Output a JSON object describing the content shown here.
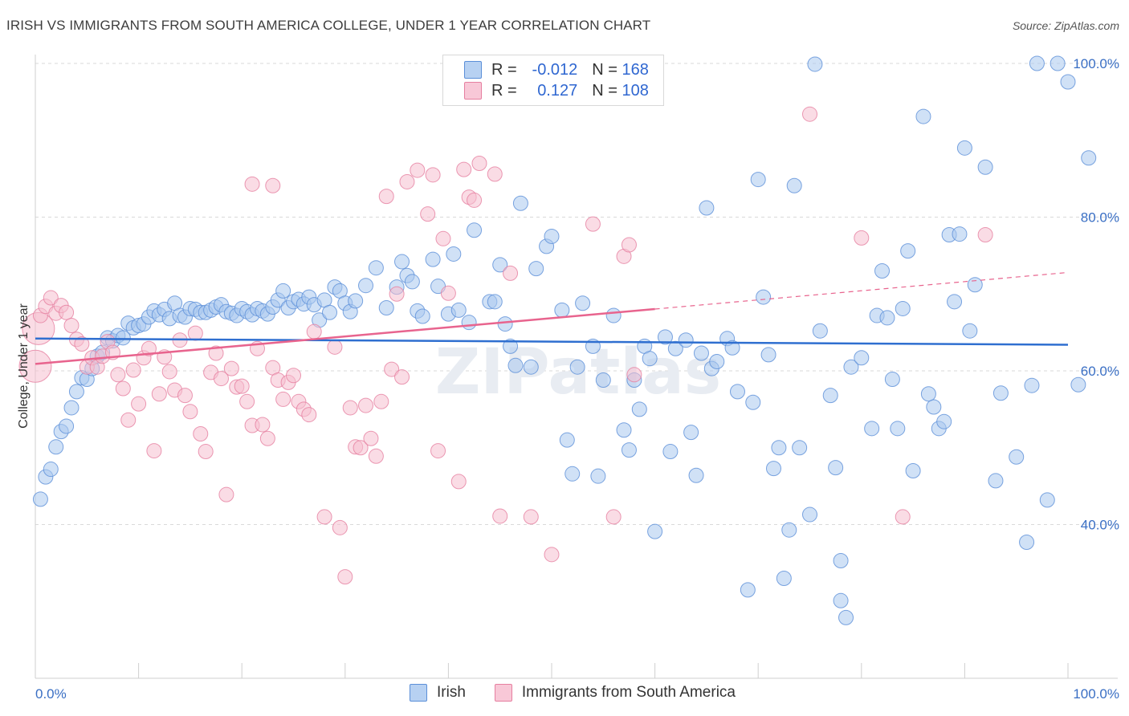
{
  "title": "IRISH VS IMMIGRANTS FROM SOUTH AMERICA COLLEGE, UNDER 1 YEAR CORRELATION CHART",
  "source": "Source: ZipAtlas.com",
  "watermark": "ZIPatlas",
  "legend": {
    "rows": [
      {
        "r_label": "R =",
        "r_value": "-0.012",
        "n_label": "N =",
        "n_value": "168"
      },
      {
        "r_label": "R =",
        "r_value": "0.127",
        "n_label": "N =",
        "n_value": "108"
      }
    ]
  },
  "bottom_legend": {
    "irish": "Irish",
    "sa": "Immigrants from South America"
  },
  "colors": {
    "irish_fill": "#aac8ef",
    "irish_stroke": "#5b8fd8",
    "irish_line": "#2f6fd0",
    "sa_fill": "#f6bfd0",
    "sa_stroke": "#e67fa0",
    "sa_line": "#e8648e",
    "grid": "#d9d9d9",
    "label": "#3a6fc4"
  },
  "chart_data": {
    "type": "scatter",
    "xlabel": "",
    "ylabel": "College, Under 1 year",
    "xlim": [
      0,
      100
    ],
    "ylim": [
      20,
      101
    ],
    "x_tick_labels": [
      "0.0%",
      "100.0%"
    ],
    "y_ticks": [
      40,
      60,
      80,
      100
    ],
    "y_tick_labels": [
      "40.0%",
      "60.0%",
      "80.0%",
      "100.0%"
    ],
    "grid": true,
    "legend_position": "top-center",
    "series": [
      {
        "name": "Irish",
        "trend": {
          "x0": 0,
          "y0": 64.2,
          "x1": 100,
          "y1": 63.4,
          "solid_to": 100
        },
        "points": [
          [
            0.5,
            43.3
          ],
          [
            1,
            46.2
          ],
          [
            1.5,
            47.2
          ],
          [
            2,
            50.1
          ],
          [
            2.5,
            52.1
          ],
          [
            3,
            52.8
          ],
          [
            3.5,
            55.2
          ],
          [
            4,
            57.3
          ],
          [
            4.5,
            59.1
          ],
          [
            5,
            58.9
          ],
          [
            5.5,
            60.3
          ],
          [
            6,
            61.9
          ],
          [
            6.5,
            62.4
          ],
          [
            7,
            64.3
          ],
          [
            7.5,
            63.9
          ],
          [
            8,
            64.6
          ],
          [
            8.5,
            64.3
          ],
          [
            9,
            66.2
          ],
          [
            9.5,
            65.6
          ],
          [
            10,
            65.9
          ],
          [
            10.5,
            66.1
          ],
          [
            11,
            67.0
          ],
          [
            11.5,
            67.8
          ],
          [
            12,
            67.3
          ],
          [
            12.5,
            68.0
          ],
          [
            13,
            66.8
          ],
          [
            13.5,
            68.8
          ],
          [
            14,
            67.2
          ],
          [
            14.5,
            67.0
          ],
          [
            15,
            68.1
          ],
          [
            15.5,
            68.0
          ],
          [
            16,
            67.6
          ],
          [
            16.5,
            67.6
          ],
          [
            17,
            67.9
          ],
          [
            17.5,
            68.3
          ],
          [
            18,
            68.6
          ],
          [
            18.5,
            67.7
          ],
          [
            19,
            67.5
          ],
          [
            19.5,
            67.2
          ],
          [
            20,
            68.1
          ],
          [
            20.5,
            67.7
          ],
          [
            21,
            67.3
          ],
          [
            21.5,
            68.1
          ],
          [
            22,
            67.8
          ],
          [
            22.5,
            67.4
          ],
          [
            23,
            68.3
          ],
          [
            23.5,
            69.2
          ],
          [
            24,
            70.4
          ],
          [
            24.5,
            68.2
          ],
          [
            25,
            69.0
          ],
          [
            25.5,
            69.3
          ],
          [
            26,
            68.7
          ],
          [
            26.5,
            69.6
          ],
          [
            27,
            68.6
          ],
          [
            27.5,
            66.6
          ],
          [
            28,
            69.2
          ],
          [
            28.5,
            67.6
          ],
          [
            29,
            70.9
          ],
          [
            29.5,
            70.4
          ],
          [
            30,
            68.8
          ],
          [
            30.5,
            67.7
          ],
          [
            31,
            69.1
          ],
          [
            32,
            71.1
          ],
          [
            33,
            73.4
          ],
          [
            34,
            68.2
          ],
          [
            35,
            70.9
          ],
          [
            35.5,
            74.2
          ],
          [
            36,
            72.4
          ],
          [
            36.5,
            71.6
          ],
          [
            37,
            67.8
          ],
          [
            37.5,
            67.1
          ],
          [
            38.5,
            74.5
          ],
          [
            39,
            71.0
          ],
          [
            40,
            67.4
          ],
          [
            40.5,
            75.2
          ],
          [
            41,
            67.9
          ],
          [
            42,
            66.3
          ],
          [
            42.5,
            78.3
          ],
          [
            44,
            69.0
          ],
          [
            44.5,
            69.0
          ],
          [
            45,
            73.8
          ],
          [
            45.5,
            66.1
          ],
          [
            46,
            63.2
          ],
          [
            46.5,
            60.7
          ],
          [
            47,
            81.8
          ],
          [
            48,
            60.5
          ],
          [
            48.5,
            73.3
          ],
          [
            49.5,
            76.2
          ],
          [
            50,
            77.5
          ],
          [
            51,
            67.9
          ],
          [
            51.5,
            51.0
          ],
          [
            52,
            46.6
          ],
          [
            52.5,
            60.5
          ],
          [
            53,
            68.8
          ],
          [
            54,
            63.2
          ],
          [
            54.5,
            46.3
          ],
          [
            55,
            58.8
          ],
          [
            56,
            67.2
          ],
          [
            57,
            52.3
          ],
          [
            57.5,
            49.7
          ],
          [
            58,
            58.8
          ],
          [
            58.5,
            55.0
          ],
          [
            59,
            63.2
          ],
          [
            59.5,
            61.6
          ],
          [
            60,
            39.1
          ],
          [
            61,
            64.4
          ],
          [
            61.5,
            49.5
          ],
          [
            62,
            62.9
          ],
          [
            63,
            64.0
          ],
          [
            63.5,
            52.0
          ],
          [
            64,
            46.4
          ],
          [
            64.5,
            62.3
          ],
          [
            65,
            81.2
          ],
          [
            65.5,
            60.3
          ],
          [
            66,
            61.2
          ],
          [
            67,
            64.2
          ],
          [
            67.5,
            63.0
          ],
          [
            68,
            57.3
          ],
          [
            69,
            31.5
          ],
          [
            69.5,
            55.9
          ],
          [
            70,
            84.9
          ],
          [
            70.5,
            69.6
          ],
          [
            71,
            62.1
          ],
          [
            71.5,
            47.3
          ],
          [
            72,
            50.0
          ],
          [
            72.5,
            33.0
          ],
          [
            73,
            39.3
          ],
          [
            73.5,
            84.1
          ],
          [
            74,
            50.0
          ],
          [
            75,
            41.3
          ],
          [
            75.5,
            99.9
          ],
          [
            76,
            65.2
          ],
          [
            77,
            56.8
          ],
          [
            77.5,
            47.4
          ],
          [
            78,
            35.3
          ],
          [
            78,
            30.1
          ],
          [
            78.5,
            27.9
          ],
          [
            79,
            60.5
          ],
          [
            80,
            61.7
          ],
          [
            81,
            52.5
          ],
          [
            81.5,
            67.2
          ],
          [
            82,
            73.0
          ],
          [
            82.5,
            66.9
          ],
          [
            83,
            58.9
          ],
          [
            83.5,
            52.5
          ],
          [
            84,
            68.1
          ],
          [
            84.5,
            75.6
          ],
          [
            85,
            47.0
          ],
          [
            86,
            93.1
          ],
          [
            86.5,
            57.0
          ],
          [
            87,
            55.3
          ],
          [
            87.5,
            52.5
          ],
          [
            88,
            53.4
          ],
          [
            88.5,
            77.7
          ],
          [
            89,
            69.0
          ],
          [
            89.5,
            77.8
          ],
          [
            90,
            89.0
          ],
          [
            90.5,
            65.2
          ],
          [
            91,
            71.2
          ],
          [
            92,
            86.5
          ],
          [
            93,
            45.7
          ],
          [
            93.5,
            57.1
          ],
          [
            95,
            48.8
          ],
          [
            96,
            37.7
          ],
          [
            96.5,
            58.1
          ],
          [
            97,
            100.0
          ],
          [
            98,
            43.2
          ],
          [
            99,
            100.0
          ],
          [
            100,
            97.6
          ],
          [
            101,
            58.2
          ],
          [
            102,
            87.7
          ]
        ]
      },
      {
        "name": "Immigrants from South America",
        "trend": {
          "x0": 0,
          "y0": 60.9,
          "x1": 100,
          "y1": 72.8,
          "solid_to": 60
        },
        "points": [
          [
            0,
            60.6
          ],
          [
            0.3,
            65.5
          ],
          [
            0.5,
            67.2
          ],
          [
            1,
            68.4
          ],
          [
            1.5,
            69.5
          ],
          [
            2,
            67.5
          ],
          [
            2.5,
            68.5
          ],
          [
            3,
            67.6
          ],
          [
            3.5,
            65.9
          ],
          [
            4,
            64.1
          ],
          [
            4.5,
            63.5
          ],
          [
            5,
            60.5
          ],
          [
            5.5,
            61.7
          ],
          [
            6,
            60.5
          ],
          [
            6.5,
            61.9
          ],
          [
            7,
            63.8
          ],
          [
            7.5,
            62.4
          ],
          [
            8,
            59.5
          ],
          [
            8.5,
            57.7
          ],
          [
            9,
            53.6
          ],
          [
            9.5,
            60.1
          ],
          [
            10,
            55.7
          ],
          [
            10.5,
            61.7
          ],
          [
            11,
            62.9
          ],
          [
            11.5,
            49.6
          ],
          [
            12,
            57.0
          ],
          [
            12.5,
            61.8
          ],
          [
            13,
            59.9
          ],
          [
            13.5,
            57.5
          ],
          [
            14,
            64.0
          ],
          [
            14.5,
            56.8
          ],
          [
            15,
            54.7
          ],
          [
            15.5,
            64.9
          ],
          [
            16,
            51.8
          ],
          [
            16.5,
            49.5
          ],
          [
            17,
            59.8
          ],
          [
            17.5,
            62.3
          ],
          [
            18,
            59.0
          ],
          [
            18.5,
            43.9
          ],
          [
            19,
            60.3
          ],
          [
            19.5,
            57.9
          ],
          [
            20,
            58.0
          ],
          [
            20.5,
            56.0
          ],
          [
            21,
            52.9
          ],
          [
            21.5,
            62.9
          ],
          [
            22,
            53.0
          ],
          [
            22.5,
            51.2
          ],
          [
            23,
            60.4
          ],
          [
            23.5,
            58.8
          ],
          [
            24,
            56.3
          ],
          [
            24.5,
            58.5
          ],
          [
            25,
            59.4
          ],
          [
            25.5,
            56.0
          ],
          [
            26,
            55.0
          ],
          [
            26.5,
            54.3
          ],
          [
            27,
            65.1
          ],
          [
            28,
            41.0
          ],
          [
            29,
            63.1
          ],
          [
            29.5,
            39.6
          ],
          [
            30,
            33.2
          ],
          [
            30.5,
            55.2
          ],
          [
            31,
            50.1
          ],
          [
            31.5,
            50.0
          ],
          [
            32,
            55.5
          ],
          [
            32.5,
            51.2
          ],
          [
            33,
            48.9
          ],
          [
            33.5,
            56.0
          ],
          [
            34,
            82.7
          ],
          [
            34.5,
            60.2
          ],
          [
            35,
            70.0
          ],
          [
            35.5,
            59.2
          ],
          [
            36,
            84.6
          ],
          [
            37,
            86.1
          ],
          [
            38,
            80.4
          ],
          [
            38.5,
            85.5
          ],
          [
            39,
            49.6
          ],
          [
            39.5,
            77.2
          ],
          [
            40,
            70.1
          ],
          [
            41,
            45.6
          ],
          [
            41.5,
            86.2
          ],
          [
            42,
            82.6
          ],
          [
            42.5,
            82.2
          ],
          [
            43,
            87.0
          ],
          [
            44.5,
            85.6
          ],
          [
            45,
            41.1
          ],
          [
            46,
            72.7
          ],
          [
            48,
            41.0
          ],
          [
            49,
            100.0
          ],
          [
            50,
            36.1
          ],
          [
            54,
            79.1
          ],
          [
            56,
            41.0
          ],
          [
            57,
            74.9
          ],
          [
            57.5,
            76.4
          ],
          [
            58,
            59.5
          ],
          [
            75,
            93.4
          ],
          [
            80,
            77.3
          ],
          [
            84,
            41.0
          ],
          [
            92,
            77.7
          ],
          [
            21,
            84.3
          ],
          [
            23,
            84.1
          ]
        ]
      }
    ]
  }
}
